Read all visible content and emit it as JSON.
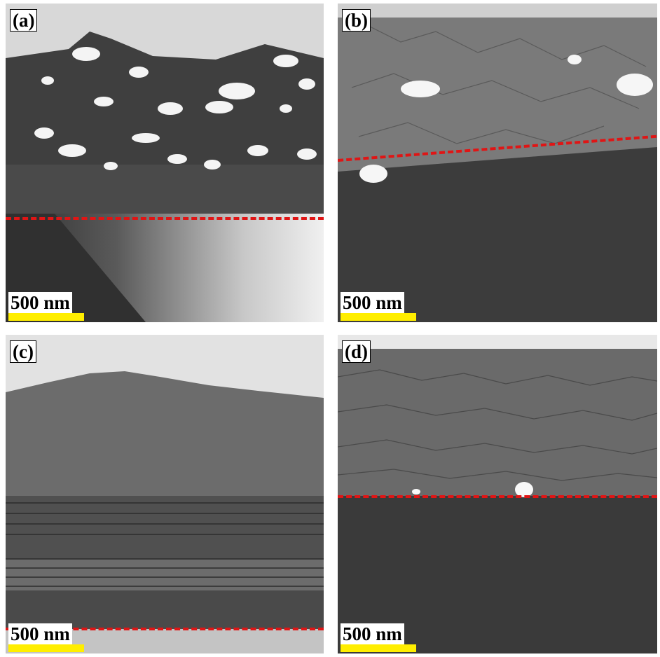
{
  "panels": [
    {
      "id": "a",
      "label": "(a)",
      "scale_text": "500 nm"
    },
    {
      "id": "b",
      "label": "(b)",
      "scale_text": "500 nm"
    },
    {
      "id": "c",
      "label": "(c)",
      "scale_text": "500 nm"
    },
    {
      "id": "d",
      "label": "(d)",
      "scale_text": "500 nm"
    }
  ],
  "colors": {
    "interface_line": "#e01515",
    "scale_bar": "#ffee00"
  }
}
